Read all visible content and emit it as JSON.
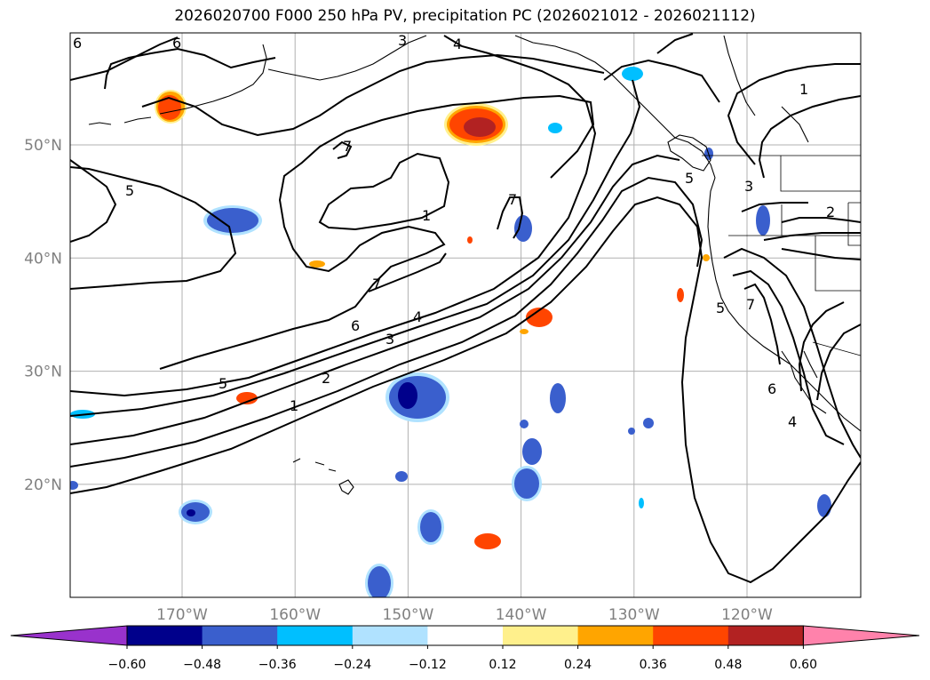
{
  "title": "2026020700 F000 250 hPa PV, precipitation PC (2026021012 - 2026021112)",
  "map": {
    "lat_labels": [
      {
        "lat": 50,
        "label": "50°N"
      },
      {
        "lat": 40,
        "label": "40°N"
      },
      {
        "lat": 30,
        "label": "30°N"
      },
      {
        "lat": 20,
        "label": "20°N"
      }
    ],
    "lon_labels": [
      {
        "lon": -170,
        "label": "170°W"
      },
      {
        "lon": -160,
        "label": "160°W"
      },
      {
        "lon": -150,
        "label": "150°W"
      },
      {
        "lon": -140,
        "label": "140°W"
      },
      {
        "lon": -130,
        "label": "130°W"
      },
      {
        "lon": -120,
        "label": "120°W"
      }
    ],
    "contour_labels": [
      "6",
      "6",
      "3",
      "4",
      "1",
      "5",
      "7",
      "1",
      "7",
      "7",
      "6",
      "4",
      "3",
      "2",
      "1",
      "5",
      "5",
      "3",
      "2",
      "5",
      "7",
      "6",
      "4"
    ]
  },
  "colorbar": {
    "ticks": [
      "−0.60",
      "−0.48",
      "−0.36",
      "−0.24",
      "−0.12",
      "0.12",
      "0.24",
      "0.36",
      "0.48",
      "0.60"
    ],
    "colors": [
      "#9932cc",
      "#00008b",
      "#3a5fcd",
      "#00bfff",
      "#b0e2ff",
      "#ffffff",
      "#fff08c",
      "#ffa500",
      "#ff4500",
      "#b22222",
      "#ff82ab"
    ]
  },
  "colors": {
    "land_outline": "#000000",
    "grid": "#b0b0b0",
    "contour": "#000000"
  }
}
